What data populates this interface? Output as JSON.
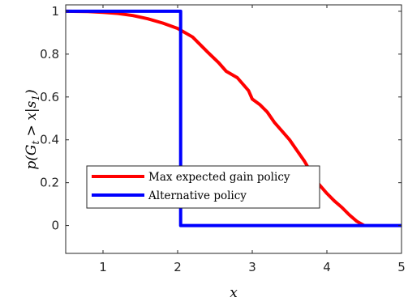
{
  "chart_data": {
    "type": "line",
    "xlabel": "x",
    "ylabel": "p(G_t > x|s_1)",
    "xlim": [
      0.5,
      5
    ],
    "ylim": [
      -0.13,
      1.03
    ],
    "xticks": [
      "1",
      "2",
      "3",
      "4",
      "5"
    ],
    "yticks": [
      "0",
      "0.2",
      "0.4",
      "0.6",
      "0.8",
      "1"
    ],
    "grid": false,
    "legend_position": "bottom-left",
    "series": [
      {
        "name": "Max expected gain policy",
        "color": "#ff0000",
        "x": [
          0.5,
          0.8,
          1.0,
          1.2,
          1.4,
          1.6,
          1.8,
          2.0,
          2.2,
          2.4,
          2.55,
          2.65,
          2.8,
          2.95,
          3.0,
          3.1,
          3.2,
          3.3,
          3.4,
          3.5,
          3.6,
          3.7,
          3.75,
          3.8,
          3.9,
          4.0,
          4.1,
          4.2,
          4.3,
          4.4,
          4.5
        ],
        "y": [
          1.0,
          0.999,
          0.995,
          0.99,
          0.98,
          0.965,
          0.945,
          0.92,
          0.88,
          0.81,
          0.76,
          0.72,
          0.69,
          0.63,
          0.59,
          0.565,
          0.53,
          0.48,
          0.44,
          0.4,
          0.35,
          0.3,
          0.27,
          0.235,
          0.19,
          0.15,
          0.115,
          0.085,
          0.05,
          0.02,
          0.0
        ]
      },
      {
        "name": "Alternative policy",
        "color": "#0000ff",
        "x": [
          0.5,
          2.04,
          2.04,
          5.0
        ],
        "y": [
          1.0,
          1.0,
          0.0,
          0.0
        ]
      }
    ]
  }
}
